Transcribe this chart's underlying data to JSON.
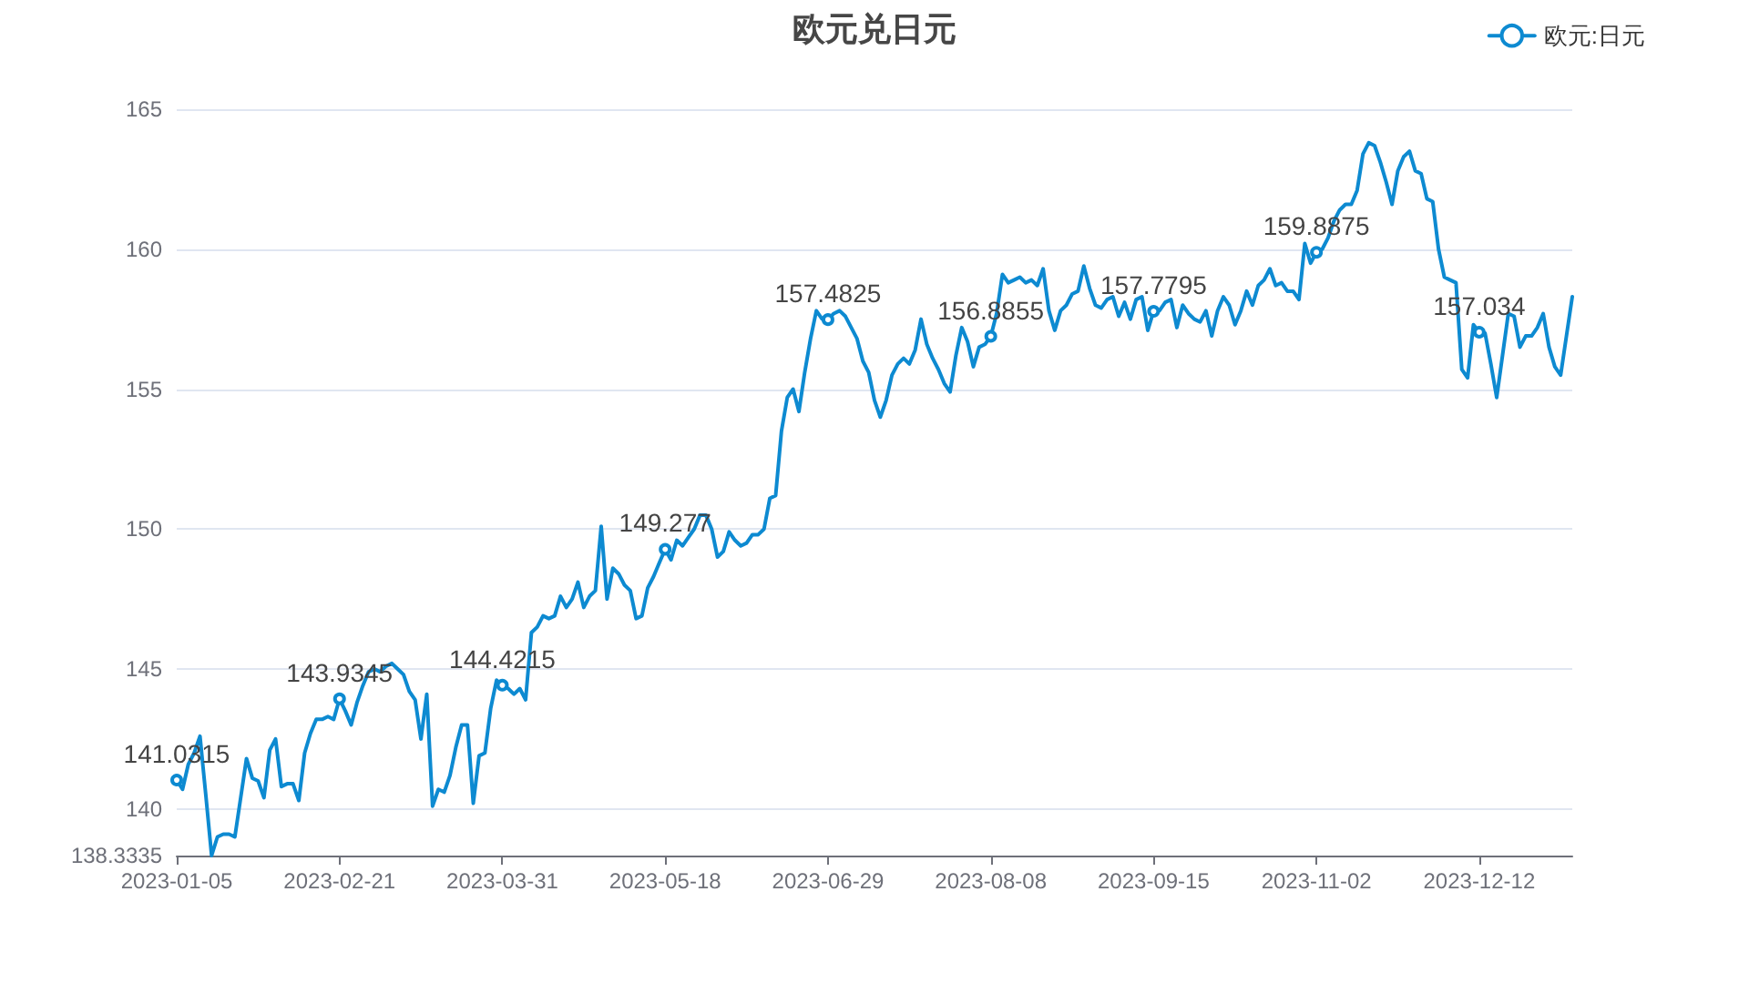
{
  "chart_data": {
    "type": "line",
    "title": "欧元兑日元",
    "categories": [
      "2023-01-05",
      null,
      null,
      null,
      null,
      null,
      null,
      null,
      null,
      null,
      null,
      null,
      null,
      null,
      null,
      null,
      null,
      null,
      null,
      null,
      null,
      null,
      null,
      null,
      null,
      null,
      null,
      null,
      "2023-02-21",
      null,
      null,
      null,
      null,
      null,
      null,
      null,
      null,
      null,
      null,
      null,
      null,
      null,
      null,
      null,
      null,
      null,
      null,
      null,
      null,
      null,
      null,
      null,
      null,
      null,
      null,
      null,
      "2023-03-31",
      null,
      null,
      null,
      null,
      null,
      null,
      null,
      null,
      null,
      null,
      null,
      null,
      null,
      null,
      null,
      null,
      null,
      null,
      null,
      null,
      null,
      null,
      null,
      null,
      null,
      null,
      null,
      "2023-05-18",
      null,
      null,
      null,
      null,
      null,
      null,
      null,
      null,
      null,
      null,
      null,
      null,
      null,
      null,
      null,
      null,
      null,
      null,
      null,
      null,
      null,
      null,
      null,
      null,
      null,
      null,
      null,
      "2023-06-29",
      null,
      null,
      null,
      null,
      null,
      null,
      null,
      null,
      null,
      null,
      null,
      null,
      null,
      null,
      null,
      null,
      null,
      null,
      null,
      null,
      null,
      null,
      null,
      null,
      null,
      null,
      null,
      "2023-08-08",
      null,
      null,
      null,
      null,
      null,
      null,
      null,
      null,
      null,
      null,
      null,
      null,
      null,
      null,
      null,
      null,
      null,
      null,
      null,
      null,
      null,
      null,
      null,
      null,
      null,
      null,
      null,
      "2023-09-15",
      null,
      null,
      null,
      null,
      null,
      null,
      null,
      null,
      null,
      null,
      null,
      null,
      null,
      null,
      null,
      null,
      null,
      null,
      null,
      null,
      null,
      null,
      null,
      null,
      null,
      null,
      null,
      "2023-11-02",
      null,
      null,
      null,
      null,
      null,
      null,
      null,
      null,
      null,
      null,
      null,
      null,
      null,
      null,
      null,
      null,
      null,
      null,
      null,
      null,
      null,
      null,
      null,
      null,
      null,
      null,
      null,
      "2023-12-12",
      null,
      null,
      null,
      null,
      null,
      null,
      null,
      null,
      null,
      null,
      null,
      null,
      null,
      null,
      null,
      null
    ],
    "series": [
      {
        "name": "欧元:日元",
        "color": "#0d8ad1",
        "values": [
          141.0315,
          140.7,
          141.6,
          142.0,
          142.6,
          140.5,
          138.3335,
          139.0,
          139.1,
          139.1,
          139.0,
          140.4,
          141.8,
          141.1,
          141.0,
          140.4,
          142.1,
          142.5,
          140.8,
          140.9,
          140.9,
          140.3,
          142.0,
          142.7,
          143.2,
          143.2,
          143.3,
          143.2,
          143.9345,
          143.5,
          143.0,
          143.8,
          144.4,
          144.9,
          145.0,
          144.9,
          145.1,
          145.2,
          145.0,
          144.8,
          144.2,
          143.9,
          142.5,
          144.1,
          140.1,
          140.7,
          140.6,
          141.2,
          142.2,
          143.0,
          143.0,
          140.2,
          141.9,
          142.0,
          143.6,
          144.6,
          144.4215,
          144.3,
          144.1,
          144.3,
          143.9,
          146.3,
          146.5,
          146.9,
          146.8,
          146.9,
          147.6,
          147.2,
          147.5,
          148.1,
          147.2,
          147.6,
          147.8,
          150.1,
          147.5,
          148.6,
          148.4,
          148.0,
          147.8,
          146.8,
          146.9,
          147.9,
          148.3,
          148.8,
          149.277,
          148.9,
          149.6,
          149.4,
          149.7,
          150.0,
          150.5,
          150.5,
          150.0,
          149.0,
          149.2,
          149.9,
          149.6,
          149.4,
          149.5,
          149.8,
          149.8,
          150.0,
          151.1,
          151.2,
          153.5,
          154.7,
          155.0,
          154.2,
          155.6,
          156.8,
          157.8,
          157.5,
          157.4825,
          157.7,
          157.8,
          157.6,
          157.2,
          156.8,
          156.0,
          155.6,
          154.6,
          154.0,
          154.6,
          155.5,
          155.9,
          156.1,
          155.9,
          156.4,
          157.5,
          156.6,
          156.1,
          155.7,
          155.2,
          154.9,
          156.2,
          157.2,
          156.7,
          155.8,
          156.5,
          156.6,
          156.8855,
          157.7,
          159.1,
          158.8,
          158.9,
          159.0,
          158.8,
          158.9,
          158.7,
          159.3,
          157.8,
          157.1,
          157.8,
          158.0,
          158.4,
          158.5,
          159.4,
          158.6,
          158.0,
          157.9,
          158.2,
          158.3,
          157.6,
          158.1,
          157.5,
          158.2,
          158.3,
          157.1,
          157.7795,
          157.8,
          158.1,
          158.2,
          157.2,
          158.0,
          157.7,
          157.5,
          157.4,
          157.8,
          156.9,
          157.8,
          158.3,
          158.0,
          157.3,
          157.8,
          158.5,
          158.0,
          158.7,
          158.9,
          159.3,
          158.7,
          158.8,
          158.5,
          158.5,
          158.2,
          160.2,
          159.5,
          159.8875,
          160.0,
          160.4,
          161.0,
          161.4,
          161.6,
          161.6,
          162.1,
          163.4,
          163.8,
          163.7,
          163.1,
          162.4,
          161.6,
          162.8,
          163.3,
          163.5,
          162.8,
          162.7,
          161.8,
          161.7,
          160.0,
          159.0,
          158.9,
          158.8,
          155.7,
          155.4,
          157.3,
          157.034,
          157.0,
          155.9,
          154.7,
          156.2,
          157.7,
          157.6,
          156.5,
          156.9,
          156.9,
          157.2,
          157.7,
          156.5,
          155.8,
          155.5,
          156.9,
          158.3
        ],
        "value_labels": [
          "141.0315",
          null,
          null,
          null,
          null,
          null,
          null,
          null,
          null,
          null,
          null,
          null,
          null,
          null,
          null,
          null,
          null,
          null,
          null,
          null,
          null,
          null,
          null,
          null,
          null,
          null,
          null,
          null,
          "143.9345",
          null,
          null,
          null,
          null,
          null,
          null,
          null,
          null,
          null,
          null,
          null,
          null,
          null,
          null,
          null,
          null,
          null,
          null,
          null,
          null,
          null,
          null,
          null,
          null,
          null,
          null,
          null,
          "144.4215",
          null,
          null,
          null,
          null,
          null,
          null,
          null,
          null,
          null,
          null,
          null,
          null,
          null,
          null,
          null,
          null,
          null,
          null,
          null,
          null,
          null,
          null,
          null,
          null,
          null,
          null,
          null,
          "149.277",
          null,
          null,
          null,
          null,
          null,
          null,
          null,
          null,
          null,
          null,
          null,
          null,
          null,
          null,
          null,
          null,
          null,
          null,
          null,
          null,
          null,
          null,
          null,
          null,
          null,
          null,
          null,
          "157.4825",
          null,
          null,
          null,
          null,
          null,
          null,
          null,
          null,
          null,
          null,
          null,
          null,
          null,
          null,
          null,
          null,
          null,
          null,
          null,
          null,
          null,
          null,
          null,
          null,
          null,
          null,
          null,
          "156.8855",
          null,
          null,
          null,
          null,
          null,
          null,
          null,
          null,
          null,
          null,
          null,
          null,
          null,
          null,
          null,
          null,
          null,
          null,
          null,
          null,
          null,
          null,
          null,
          null,
          null,
          null,
          null,
          "157.7795",
          null,
          null,
          null,
          null,
          null,
          null,
          null,
          null,
          null,
          null,
          null,
          null,
          null,
          null,
          null,
          null,
          null,
          null,
          null,
          null,
          null,
          null,
          null,
          null,
          null,
          null,
          null,
          "159.8875",
          null,
          null,
          null,
          null,
          null,
          null,
          null,
          null,
          null,
          null,
          null,
          null,
          null,
          null,
          null,
          null,
          null,
          null,
          null,
          null,
          null,
          null,
          null,
          null,
          null,
          null,
          null,
          "157.034",
          null,
          null,
          null,
          null,
          null,
          null,
          null,
          null,
          null,
          null,
          null,
          null,
          null,
          null,
          null,
          null
        ]
      }
    ],
    "ylim": [
      138.3335,
      165
    ],
    "yticks": [
      138.3335,
      140,
      145,
      150,
      155,
      160,
      165
    ],
    "grid": "y",
    "legend": "top right",
    "line_style": "solid"
  }
}
